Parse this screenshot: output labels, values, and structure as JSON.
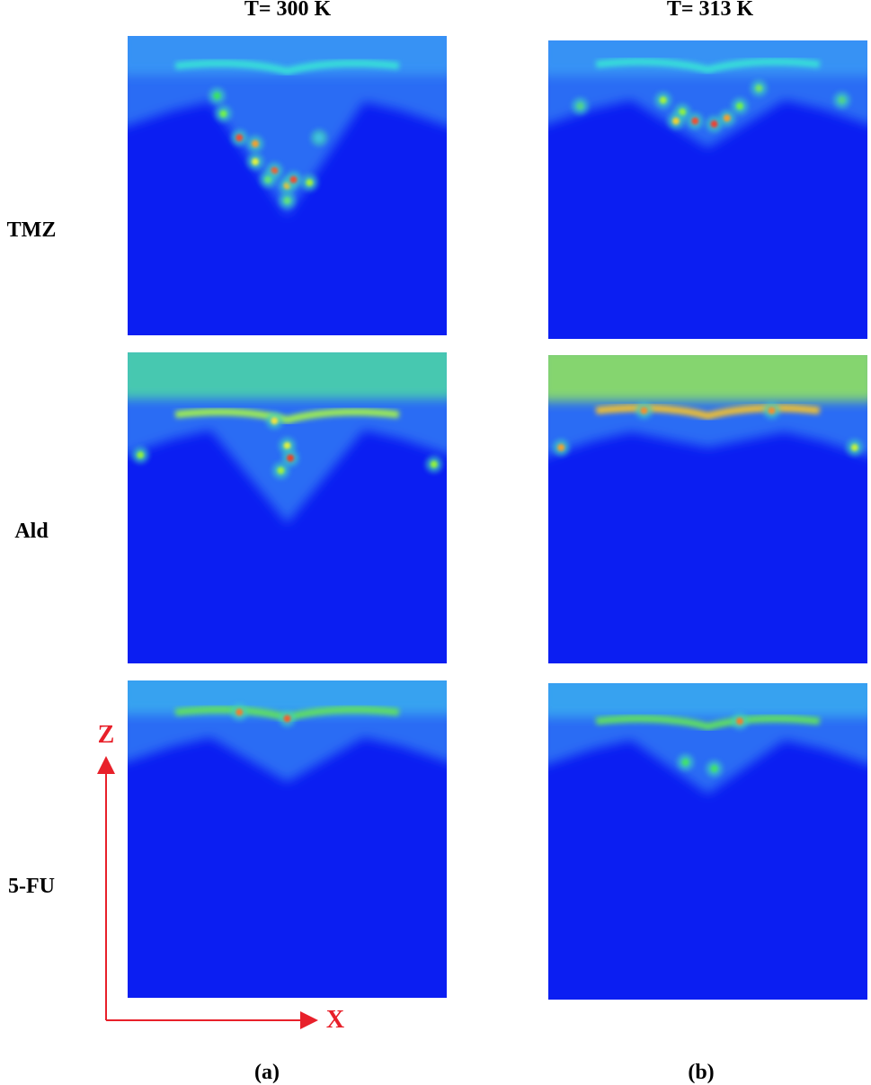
{
  "columns": [
    {
      "label": "T= 300 K"
    },
    {
      "label": "T= 313 K"
    }
  ],
  "rows": [
    {
      "label": "TMZ"
    },
    {
      "label": "Ald"
    },
    {
      "label": "5-FU"
    }
  ],
  "axes": {
    "z_label": "Z",
    "x_label": "X"
  },
  "panel_labels": [
    "(a)",
    "(b)"
  ]
}
